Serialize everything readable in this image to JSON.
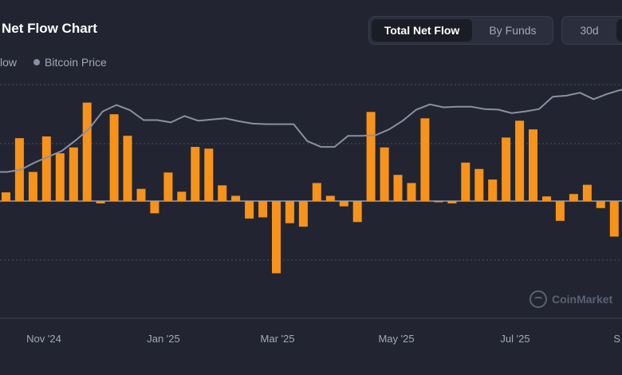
{
  "header": {
    "title": "Net Flow Chart"
  },
  "tabs": {
    "view": [
      {
        "label": "Total Net Flow",
        "active": true
      },
      {
        "label": "By Funds",
        "active": false
      }
    ],
    "range": [
      {
        "label": "30d",
        "active": false
      },
      {
        "label": "",
        "active": true
      }
    ]
  },
  "legend": {
    "net_flow_label": "low",
    "price_label": "Bitcoin Price"
  },
  "watermark": {
    "text": "CoinMarket",
    "icon": "coinmarketcap-logo-icon"
  },
  "colors": {
    "background": "#222531",
    "bar": "#f7931a",
    "price_line": "#8a8fa3",
    "grid": "#4a4f5f"
  },
  "chart_data": {
    "type": "bar",
    "title": "",
    "xlabel": "",
    "ylabel": "",
    "x_tick_labels": [
      "Nov '24",
      "Jan '25",
      "Mar '25",
      "May '25",
      "Jul '25",
      "S"
    ],
    "grid": "horizontal dotted",
    "series": [
      {
        "name": "low",
        "kind": "bar",
        "values": [
          1.5,
          10.8,
          5,
          11.1,
          8.2,
          9.2,
          16.9,
          -0.4,
          14.9,
          11.2,
          2.1,
          -2.1,
          4.9,
          1.6,
          9.3,
          9,
          2.7,
          0.9,
          -3,
          -2.8,
          -12.4,
          -3.8,
          -4.4,
          3.1,
          0.9,
          -0.9,
          -3.6,
          15.3,
          9.2,
          4.5,
          3.1,
          14.2,
          -0.2,
          -0.4,
          6.6,
          5.5,
          3.7,
          10.9,
          13.8,
          12.3,
          0.8,
          -3.4,
          1.2,
          2.8,
          -1.2,
          -6.1,
          1.9
        ]
      },
      {
        "name": "Bitcoin Price",
        "kind": "line",
        "values": [
          5,
          5,
          5.4,
          6.6,
          7.6,
          8.6,
          10.4,
          12.4,
          15.4,
          16.5,
          15.6,
          13.9,
          13.9,
          13.5,
          14.6,
          13.8,
          14,
          14.2,
          13.7,
          13.3,
          13.2,
          13.2,
          13.2,
          10.3,
          9.3,
          9.3,
          11.2,
          11.2,
          11.3,
          12.3,
          13.8,
          15.7,
          16.6,
          16.1,
          16.2,
          16.2,
          15.8,
          15.7,
          15.1,
          15.4,
          15.8,
          17.9,
          18.1,
          18.6,
          17.5,
          18.4,
          19.1,
          18.3,
          17.4
        ]
      }
    ]
  }
}
